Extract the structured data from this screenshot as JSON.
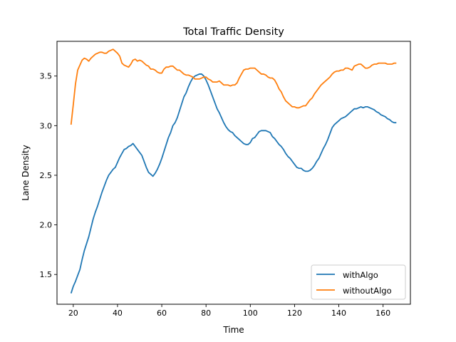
{
  "chart_data": {
    "type": "line",
    "title": "Total Traffic Density",
    "xlabel": "Time",
    "ylabel": "Lane Density",
    "xlim": [
      12.65,
      172.35
    ],
    "ylim": [
      1.2,
      3.85
    ],
    "xticks": [
      20,
      40,
      60,
      80,
      100,
      120,
      140,
      160
    ],
    "yticks": [
      1.5,
      2.0,
      2.5,
      3.0,
      3.5
    ],
    "ytick_labels": [
      "1.5",
      "2.0",
      "2.5",
      "3.0",
      "3.5"
    ],
    "grid": false,
    "legend_position": "lower-right",
    "series": [
      {
        "name": "withAlgo",
        "color": "#1f77b4",
        "x": [
          19,
          20,
          21,
          22,
          23,
          24,
          25,
          26,
          27,
          28,
          29,
          30,
          31,
          32,
          33,
          34,
          35,
          36,
          37,
          38,
          39,
          40,
          41,
          42,
          43,
          44,
          45,
          46,
          47,
          48,
          49,
          50,
          51,
          52,
          53,
          54,
          55,
          56,
          57,
          58,
          59,
          60,
          61,
          62,
          63,
          64,
          65,
          66,
          67,
          68,
          69,
          70,
          71,
          72,
          73,
          74,
          75,
          76,
          77,
          78,
          79,
          80,
          81,
          82,
          83,
          84,
          85,
          86,
          87,
          88,
          89,
          90,
          91,
          92,
          93,
          94,
          95,
          96,
          97,
          98,
          99,
          100,
          101,
          102,
          103,
          104,
          105,
          106,
          107,
          108,
          109,
          110,
          111,
          112,
          113,
          114,
          115,
          116,
          117,
          118,
          119,
          120,
          121,
          122,
          123,
          124,
          125,
          126,
          127,
          128,
          129,
          130,
          131,
          132,
          133,
          134,
          135,
          136,
          137,
          138,
          139,
          140,
          141,
          142,
          143,
          144,
          145,
          146,
          147,
          148,
          149,
          150,
          151,
          152,
          153,
          154,
          155,
          156,
          157,
          158,
          159,
          160,
          161,
          162,
          163,
          164,
          165,
          166
        ],
        "y": [
          1.31,
          1.38,
          1.43,
          1.49,
          1.55,
          1.65,
          1.74,
          1.81,
          1.88,
          1.97,
          2.06,
          2.13,
          2.19,
          2.26,
          2.33,
          2.39,
          2.45,
          2.5,
          2.53,
          2.56,
          2.58,
          2.63,
          2.68,
          2.72,
          2.76,
          2.77,
          2.79,
          2.8,
          2.82,
          2.79,
          2.76,
          2.73,
          2.7,
          2.64,
          2.58,
          2.53,
          2.51,
          2.49,
          2.52,
          2.56,
          2.61,
          2.67,
          2.74,
          2.81,
          2.88,
          2.93,
          3.0,
          3.03,
          3.08,
          3.15,
          3.22,
          3.29,
          3.33,
          3.39,
          3.44,
          3.48,
          3.5,
          3.51,
          3.52,
          3.52,
          3.5,
          3.46,
          3.41,
          3.35,
          3.29,
          3.23,
          3.17,
          3.13,
          3.08,
          3.03,
          2.99,
          2.96,
          2.94,
          2.93,
          2.9,
          2.88,
          2.86,
          2.84,
          2.82,
          2.81,
          2.81,
          2.83,
          2.87,
          2.88,
          2.91,
          2.94,
          2.95,
          2.95,
          2.95,
          2.94,
          2.93,
          2.89,
          2.87,
          2.84,
          2.81,
          2.79,
          2.76,
          2.72,
          2.69,
          2.67,
          2.64,
          2.61,
          2.58,
          2.57,
          2.57,
          2.55,
          2.54,
          2.54,
          2.55,
          2.57,
          2.6,
          2.64,
          2.67,
          2.72,
          2.77,
          2.81,
          2.86,
          2.92,
          2.98,
          3.01,
          3.03,
          3.05,
          3.07,
          3.08,
          3.09,
          3.11,
          3.13,
          3.15,
          3.17,
          3.17,
          3.18,
          3.19,
          3.18,
          3.19,
          3.19,
          3.18,
          3.17,
          3.16,
          3.14,
          3.13,
          3.11,
          3.1,
          3.09,
          3.07,
          3.06,
          3.04,
          3.03,
          3.03
        ]
      },
      {
        "name": "withoutAlgo",
        "color": "#ff7f0e",
        "x": [
          19,
          20,
          21,
          22,
          23,
          24,
          25,
          26,
          27,
          28,
          29,
          30,
          31,
          32,
          33,
          34,
          35,
          36,
          37,
          38,
          39,
          40,
          41,
          42,
          43,
          44,
          45,
          46,
          47,
          48,
          49,
          50,
          51,
          52,
          53,
          54,
          55,
          56,
          57,
          58,
          59,
          60,
          61,
          62,
          63,
          64,
          65,
          66,
          67,
          68,
          69,
          70,
          71,
          72,
          73,
          74,
          75,
          76,
          77,
          78,
          79,
          80,
          81,
          82,
          83,
          84,
          85,
          86,
          87,
          88,
          89,
          90,
          91,
          92,
          93,
          94,
          95,
          96,
          97,
          98,
          99,
          100,
          101,
          102,
          103,
          104,
          105,
          106,
          107,
          108,
          109,
          110,
          111,
          112,
          113,
          114,
          115,
          116,
          117,
          118,
          119,
          120,
          121,
          122,
          123,
          124,
          125,
          126,
          127,
          128,
          129,
          130,
          131,
          132,
          133,
          134,
          135,
          136,
          137,
          138,
          139,
          140,
          141,
          142,
          143,
          144,
          145,
          146,
          147,
          148,
          149,
          150,
          151,
          152,
          153,
          154,
          155,
          156,
          157,
          158,
          159,
          160,
          161,
          162,
          163,
          164,
          165,
          166
        ],
        "y": [
          3.01,
          3.21,
          3.42,
          3.56,
          3.61,
          3.66,
          3.68,
          3.67,
          3.65,
          3.68,
          3.7,
          3.72,
          3.73,
          3.74,
          3.74,
          3.73,
          3.73,
          3.75,
          3.76,
          3.77,
          3.75,
          3.73,
          3.7,
          3.63,
          3.61,
          3.6,
          3.59,
          3.62,
          3.66,
          3.67,
          3.65,
          3.66,
          3.65,
          3.63,
          3.61,
          3.6,
          3.57,
          3.57,
          3.56,
          3.54,
          3.53,
          3.53,
          3.57,
          3.59,
          3.59,
          3.6,
          3.6,
          3.58,
          3.56,
          3.56,
          3.54,
          3.52,
          3.51,
          3.51,
          3.5,
          3.49,
          3.47,
          3.47,
          3.47,
          3.48,
          3.49,
          3.49,
          3.47,
          3.46,
          3.44,
          3.44,
          3.44,
          3.45,
          3.43,
          3.41,
          3.41,
          3.41,
          3.4,
          3.41,
          3.41,
          3.43,
          3.48,
          3.52,
          3.56,
          3.57,
          3.57,
          3.58,
          3.58,
          3.58,
          3.56,
          3.54,
          3.52,
          3.52,
          3.51,
          3.49,
          3.48,
          3.48,
          3.46,
          3.42,
          3.37,
          3.34,
          3.29,
          3.25,
          3.23,
          3.21,
          3.19,
          3.19,
          3.18,
          3.18,
          3.19,
          3.2,
          3.2,
          3.23,
          3.26,
          3.28,
          3.32,
          3.35,
          3.38,
          3.41,
          3.43,
          3.45,
          3.47,
          3.49,
          3.52,
          3.54,
          3.55,
          3.55,
          3.56,
          3.56,
          3.58,
          3.58,
          3.57,
          3.56,
          3.6,
          3.61,
          3.62,
          3.62,
          3.6,
          3.58,
          3.58,
          3.59,
          3.61,
          3.62,
          3.62,
          3.63,
          3.63,
          3.63,
          3.63,
          3.62,
          3.62,
          3.62,
          3.63,
          3.63
        ]
      }
    ]
  }
}
